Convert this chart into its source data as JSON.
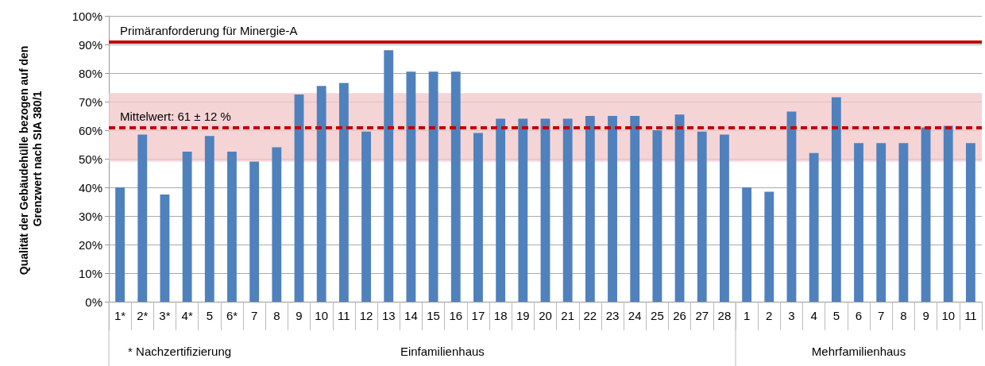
{
  "chart_data": {
    "type": "bar",
    "ylabel": "Qualität der Gebäudehülle bezogen auf den Grenzwert nach SIA 380/1",
    "categories": [
      "1*",
      "2*",
      "3*",
      "4*",
      "5",
      "6*",
      "7",
      "8",
      "9",
      "10",
      "11",
      "12",
      "13",
      "14",
      "15",
      "16",
      "17",
      "18",
      "19",
      "20",
      "21",
      "22",
      "23",
      "24",
      "25",
      "26",
      "27",
      "28",
      "1",
      "2",
      "3",
      "4",
      "5",
      "6",
      "7",
      "8",
      "9",
      "10",
      "11"
    ],
    "series": [
      {
        "color": "#4f81bd",
        "values": [
          40,
          58.5,
          37.5,
          52.5,
          58,
          52.5,
          49,
          54,
          72.5,
          75.5,
          76.5,
          59.5,
          88,
          80.5,
          80.5,
          80.5,
          59,
          64,
          64,
          64,
          64,
          65,
          65,
          65,
          60,
          65.5,
          59.5,
          58.5,
          40,
          38.5,
          66.5,
          52,
          71.5,
          55.5,
          55.5,
          55.5,
          61,
          61.5,
          55.5
        ]
      }
    ],
    "ylim": [
      0,
      100
    ],
    "yticks": [
      {
        "value": 0,
        "label": "0%"
      },
      {
        "value": 10,
        "label": "10%"
      },
      {
        "value": 20,
        "label": "20%"
      },
      {
        "value": 30,
        "label": "30%"
      },
      {
        "value": 40,
        "label": "40%"
      },
      {
        "value": 50,
        "label": "50%"
      },
      {
        "value": 60,
        "label": "60%"
      },
      {
        "value": 70,
        "label": "70%"
      },
      {
        "value": 80,
        "label": "80%"
      },
      {
        "value": 90,
        "label": "90%"
      },
      {
        "value": 100,
        "label": "100%"
      }
    ],
    "grid": "y",
    "ref_lines": [
      {
        "axis": "y",
        "value": 91,
        "label": "Primäranforderung für Minergie-A",
        "color": "#c00000",
        "line_style": "solid"
      },
      {
        "axis": "y",
        "value": 61,
        "label": "Mittelwert: 61 ± 12 %",
        "color": "#c00000",
        "line_style": "dashed"
      }
    ],
    "bands": [
      {
        "axis": "y",
        "from": 49,
        "to": 73,
        "color": "#f2c6c8"
      }
    ],
    "annotations": [
      "* Nachzertifizierung",
      "Einfamilienhaus",
      "Mehrfamilienhaus"
    ]
  }
}
